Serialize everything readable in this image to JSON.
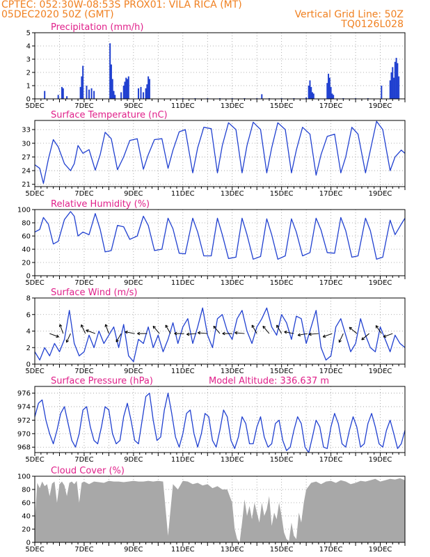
{
  "header": {
    "line1": "CPTEC:   052:30W-08:53S   PROX01: VILA RICA (MT)",
    "line2_left": "05DEC2020 50Z (GMT)",
    "line2_right": "Vertical Grid Line: 50Z",
    "line3_right": "TQ0126L028"
  },
  "colors": {
    "header": "#f08020",
    "title": "#e0208a",
    "series": "#2040d0",
    "cloud": "#a8a8a8",
    "arrow": "#000000"
  },
  "x_tick_labels": [
    "5DEC",
    "7DEC",
    "9DEC",
    "11DEC",
    "13DEC",
    "15DEC",
    "17DEC",
    "19DEC"
  ],
  "chart_data": [
    {
      "id": "precip",
      "type": "bar",
      "title": "Precipitation (mm/h)",
      "xlim": [
        5.0,
        20.0
      ],
      "ylim": [
        0,
        5
      ],
      "yticks": [
        0,
        1,
        2,
        3,
        4,
        5
      ],
      "grid": "dotted",
      "x": [
        5.4,
        5.95,
        6.1,
        6.15,
        6.3,
        6.85,
        6.9,
        6.95,
        7.1,
        7.2,
        7.3,
        7.4,
        8.05,
        8.1,
        8.15,
        8.2,
        8.25,
        8.5,
        8.6,
        8.65,
        8.7,
        8.75,
        8.8,
        9.2,
        9.3,
        9.4,
        9.5,
        9.55,
        9.6,
        9.65,
        11.0,
        11.5,
        12.0,
        12.5,
        13.0,
        13.5,
        14.0,
        14.2,
        14.5,
        15.0,
        15.5,
        16.0,
        16.1,
        16.15,
        16.2,
        16.25,
        16.3,
        16.85,
        16.9,
        16.95,
        17.0,
        17.05,
        17.1,
        17.5,
        18.0,
        18.5,
        19.05,
        19.4,
        19.45,
        19.5,
        19.55,
        19.6,
        19.65,
        19.7,
        19.75
      ],
      "values": [
        0.6,
        0.3,
        0.9,
        0.8,
        0.2,
        0.9,
        1.7,
        2.5,
        1.0,
        0.7,
        0.8,
        0.6,
        4.2,
        2.6,
        1.5,
        0.6,
        0.3,
        0.5,
        1.0,
        1.3,
        1.6,
        1.5,
        1.7,
        0.8,
        0.9,
        0.5,
        0.8,
        1.1,
        1.7,
        1.5,
        0.05,
        0.05,
        0.05,
        0.05,
        0.05,
        0.05,
        0.05,
        0.35,
        0.05,
        0.05,
        0.05,
        0.1,
        1.0,
        1.4,
        0.9,
        0.5,
        0.4,
        1.2,
        1.9,
        1.6,
        0.9,
        0.4,
        0.3,
        0.05,
        0.05,
        0.05,
        1.0,
        1.4,
        2.0,
        2.4,
        1.6,
        2.8,
        3.1,
        2.7,
        1.7
      ]
    },
    {
      "id": "temp",
      "type": "line",
      "title": "Surface Temperature (nC)",
      "xlim": [
        5.0,
        20.0
      ],
      "ylim": [
        20.5,
        35.0
      ],
      "yticks": [
        21,
        24,
        27,
        30,
        33
      ],
      "grid": "dotted",
      "x": [
        5.0,
        5.2,
        5.35,
        5.55,
        5.75,
        5.95,
        6.2,
        6.45,
        6.6,
        6.75,
        6.95,
        7.2,
        7.45,
        7.65,
        7.85,
        8.1,
        8.35,
        8.6,
        8.85,
        9.15,
        9.4,
        9.6,
        9.85,
        10.15,
        10.4,
        10.6,
        10.85,
        11.1,
        11.4,
        11.6,
        11.85,
        12.15,
        12.4,
        12.6,
        12.85,
        13.15,
        13.4,
        13.6,
        13.85,
        14.15,
        14.4,
        14.6,
        14.85,
        15.15,
        15.4,
        15.6,
        15.85,
        16.15,
        16.4,
        16.6,
        16.85,
        17.15,
        17.4,
        17.6,
        17.85,
        18.1,
        18.4,
        18.6,
        18.85,
        19.1,
        19.4,
        19.6,
        19.85,
        20.0
      ],
      "values": [
        25.3,
        24.5,
        21.2,
        26.5,
        30.8,
        29.2,
        25.5,
        24.0,
        25.5,
        29.5,
        27.8,
        28.6,
        24.1,
        27.5,
        32.4,
        31.0,
        24.2,
        27.0,
        30.6,
        31.0,
        24.3,
        27.5,
        30.8,
        31.0,
        24.5,
        28.5,
        32.5,
        33.0,
        23.5,
        29.0,
        33.5,
        33.2,
        23.5,
        29.5,
        34.5,
        33.0,
        23.5,
        29.5,
        34.6,
        33.0,
        23.5,
        29.0,
        34.5,
        33.0,
        23.5,
        28.5,
        33.5,
        32.0,
        23.0,
        27.5,
        31.5,
        32.0,
        23.5,
        27.0,
        33.5,
        32.0,
        23.5,
        28.5,
        34.8,
        33.0,
        24.0,
        27.0,
        28.5,
        27.8
      ]
    },
    {
      "id": "rh",
      "type": "line",
      "title": "Relative Humidity (%)",
      "xlim": [
        5.0,
        20.0
      ],
      "ylim": [
        0,
        100
      ],
      "yticks": [
        0,
        20,
        40,
        60,
        80,
        100
      ],
      "grid": "dotted",
      "x": [
        5.0,
        5.2,
        5.35,
        5.55,
        5.75,
        5.95,
        6.2,
        6.45,
        6.6,
        6.75,
        6.95,
        7.2,
        7.45,
        7.65,
        7.85,
        8.1,
        8.35,
        8.6,
        8.85,
        9.15,
        9.4,
        9.6,
        9.85,
        10.15,
        10.4,
        10.6,
        10.85,
        11.1,
        11.4,
        11.6,
        11.85,
        12.15,
        12.4,
        12.6,
        12.85,
        13.15,
        13.4,
        13.6,
        13.85,
        14.15,
        14.4,
        14.6,
        14.85,
        15.15,
        15.4,
        15.6,
        15.85,
        16.15,
        16.4,
        16.6,
        16.85,
        17.15,
        17.4,
        17.6,
        17.85,
        18.1,
        18.4,
        18.6,
        18.85,
        19.1,
        19.4,
        19.6,
        19.85,
        20.0
      ],
      "values": [
        66,
        70,
        88,
        78,
        48,
        52,
        85,
        97,
        90,
        60,
        66,
        62,
        94,
        70,
        36,
        38,
        76,
        74,
        55,
        60,
        90,
        76,
        38,
        40,
        87,
        71,
        34,
        33,
        87,
        66,
        30,
        30,
        87,
        62,
        26,
        28,
        87,
        62,
        25,
        29,
        86,
        62,
        25,
        30,
        86,
        66,
        30,
        35,
        87,
        69,
        35,
        34,
        88,
        68,
        28,
        30,
        87,
        68,
        25,
        28,
        84,
        62,
        78,
        87
      ]
    },
    {
      "id": "wind",
      "type": "line",
      "title": "Surface Wind (m/s)",
      "xlim": [
        5.0,
        20.0
      ],
      "ylim": [
        0,
        8
      ],
      "yticks": [
        0,
        2,
        4,
        6,
        8
      ],
      "grid": "dotted",
      "x": [
        5.0,
        5.2,
        5.4,
        5.6,
        5.8,
        6.0,
        6.2,
        6.4,
        6.6,
        6.8,
        7.0,
        7.2,
        7.4,
        7.6,
        7.8,
        8.0,
        8.2,
        8.4,
        8.6,
        8.8,
        9.0,
        9.2,
        9.4,
        9.6,
        9.8,
        10.0,
        10.2,
        10.4,
        10.6,
        10.8,
        11.0,
        11.2,
        11.4,
        11.6,
        11.8,
        12.0,
        12.2,
        12.4,
        12.6,
        12.8,
        13.0,
        13.2,
        13.4,
        13.6,
        13.8,
        14.0,
        14.2,
        14.4,
        14.6,
        14.8,
        15.0,
        15.2,
        15.4,
        15.6,
        15.8,
        16.0,
        16.2,
        16.4,
        16.6,
        16.8,
        17.0,
        17.2,
        17.4,
        17.6,
        17.8,
        18.0,
        18.2,
        18.4,
        18.6,
        18.8,
        19.0,
        19.2,
        19.4,
        19.6,
        19.8,
        20.0
      ],
      "values": [
        1.5,
        0.5,
        2.0,
        1.0,
        2.5,
        1.5,
        3.0,
        6.5,
        2.5,
        1.0,
        1.5,
        3.5,
        2.0,
        4.0,
        2.5,
        3.5,
        4.5,
        2.0,
        4.8,
        1.0,
        0.3,
        3.0,
        2.5,
        4.5,
        2.0,
        3.5,
        1.5,
        3.0,
        5.0,
        2.5,
        4.5,
        5.5,
        2.5,
        4.5,
        6.8,
        3.5,
        2.0,
        5.5,
        6.0,
        4.0,
        3.0,
        5.5,
        6.5,
        4.0,
        2.5,
        4.5,
        5.5,
        6.8,
        4.5,
        3.5,
        6.0,
        5.0,
        3.0,
        5.8,
        5.5,
        2.5,
        4.5,
        6.5,
        2.0,
        0.5,
        1.0,
        4.5,
        5.5,
        3.5,
        1.5,
        2.5,
        5.5,
        3.5,
        2.0,
        1.5,
        4.5,
        3.0,
        1.5,
        3.5,
        2.5,
        2.0
      ]
    },
    {
      "id": "pressure",
      "type": "line",
      "title": "Surface Pressure (hPa)",
      "extra_label": "Model Altitude: 336.637 m",
      "xlim": [
        5.0,
        20.0
      ],
      "ylim": [
        967.2,
        977.0
      ],
      "yticks": [
        968,
        970,
        972,
        974,
        976
      ],
      "grid": "dotted",
      "x": [
        5.0,
        5.15,
        5.3,
        5.45,
        5.6,
        5.75,
        5.9,
        6.05,
        6.2,
        6.35,
        6.5,
        6.65,
        6.8,
        6.95,
        7.1,
        7.25,
        7.4,
        7.55,
        7.7,
        7.85,
        8.0,
        8.15,
        8.3,
        8.45,
        8.6,
        8.75,
        8.9,
        9.05,
        9.2,
        9.35,
        9.5,
        9.65,
        9.8,
        9.95,
        10.1,
        10.25,
        10.4,
        10.55,
        10.7,
        10.85,
        11.0,
        11.15,
        11.3,
        11.45,
        11.6,
        11.75,
        11.9,
        12.05,
        12.2,
        12.35,
        12.5,
        12.65,
        12.8,
        12.95,
        13.1,
        13.25,
        13.4,
        13.55,
        13.7,
        13.85,
        14.0,
        14.15,
        14.3,
        14.45,
        14.6,
        14.75,
        14.9,
        15.05,
        15.2,
        15.35,
        15.5,
        15.65,
        15.8,
        15.95,
        16.1,
        16.25,
        16.4,
        16.55,
        16.7,
        16.85,
        17.0,
        17.15,
        17.3,
        17.45,
        17.6,
        17.75,
        17.9,
        18.05,
        18.2,
        18.35,
        18.5,
        18.65,
        18.8,
        18.95,
        19.1,
        19.25,
        19.4,
        19.55,
        19.7,
        19.85,
        20.0
      ],
      "values": [
        972.5,
        974.5,
        975.0,
        972.0,
        970.0,
        968.5,
        970.5,
        973.0,
        974.0,
        971.5,
        969.0,
        968.0,
        970.0,
        973.5,
        974.0,
        971.0,
        969.0,
        968.5,
        971.0,
        974.0,
        973.5,
        970.0,
        968.5,
        969.0,
        972.5,
        974.5,
        972.0,
        969.0,
        968.5,
        972.0,
        975.5,
        976.0,
        972.0,
        969.0,
        969.5,
        973.5,
        976.0,
        973.0,
        969.5,
        968.0,
        970.0,
        973.0,
        973.5,
        970.0,
        968.0,
        970.0,
        973.0,
        972.5,
        969.0,
        968.0,
        970.5,
        973.5,
        972.5,
        969.0,
        967.8,
        969.5,
        972.5,
        971.5,
        968.5,
        968.5,
        971.0,
        972.5,
        969.5,
        968.0,
        968.5,
        971.5,
        972.0,
        969.0,
        967.5,
        968.0,
        970.5,
        972.5,
        971.5,
        968.0,
        967.2,
        969.5,
        972.0,
        971.0,
        968.0,
        967.8,
        971.0,
        973.0,
        971.5,
        968.5,
        968.0,
        970.5,
        972.5,
        971.0,
        968.0,
        968.5,
        971.5,
        973.0,
        971.0,
        968.5,
        968.0,
        970.5,
        972.0,
        970.0,
        967.8,
        968.5,
        970.5
      ]
    },
    {
      "id": "cloud",
      "type": "area",
      "title": "Cloud Cover (%)",
      "xlim": [
        5.0,
        20.0
      ],
      "ylim": [
        0,
        100
      ],
      "yticks": [
        0,
        20,
        40,
        60,
        80,
        100
      ],
      "grid": "dotted",
      "x": [
        5.0,
        5.1,
        5.2,
        5.3,
        5.4,
        5.5,
        5.6,
        5.7,
        5.8,
        5.9,
        6.0,
        6.1,
        6.2,
        6.3,
        6.4,
        6.5,
        6.6,
        6.7,
        6.8,
        6.9,
        7.0,
        7.2,
        7.4,
        7.6,
        7.8,
        8.0,
        8.2,
        8.4,
        8.6,
        8.8,
        9.0,
        9.2,
        9.4,
        9.6,
        9.8,
        10.0,
        10.2,
        10.4,
        10.6,
        10.8,
        11.0,
        11.2,
        11.4,
        11.6,
        11.8,
        12.0,
        12.2,
        12.4,
        12.6,
        12.8,
        13.0,
        13.1,
        13.2,
        13.3,
        13.4,
        13.5,
        13.6,
        13.7,
        13.8,
        13.9,
        14.0,
        14.1,
        14.2,
        14.3,
        14.4,
        14.5,
        14.6,
        14.7,
        14.8,
        14.9,
        15.0,
        15.1,
        15.2,
        15.3,
        15.4,
        15.5,
        15.6,
        15.7,
        15.8,
        15.9,
        16.0,
        16.1,
        16.2,
        16.4,
        16.6,
        16.8,
        17.0,
        17.2,
        17.4,
        17.6,
        17.8,
        18.0,
        18.2,
        18.4,
        18.6,
        18.8,
        19.0,
        19.2,
        19.4,
        19.6,
        19.8,
        20.0
      ],
      "values": [
        30,
        90,
        82,
        92,
        85,
        88,
        70,
        89,
        92,
        60,
        88,
        92,
        86,
        70,
        90,
        92,
        88,
        93,
        60,
        90,
        92,
        88,
        92,
        91,
        90,
        93,
        92,
        92,
        91,
        92,
        93,
        92,
        92,
        93,
        92,
        93,
        92,
        10,
        88,
        80,
        93,
        92,
        88,
        90,
        86,
        88,
        82,
        85,
        80,
        80,
        60,
        20,
        5,
        0,
        30,
        65,
        40,
        55,
        35,
        60,
        45,
        30,
        60,
        40,
        50,
        70,
        25,
        45,
        35,
        60,
        40,
        15,
        5,
        2,
        30,
        10,
        5,
        45,
        30,
        60,
        80,
        85,
        90,
        92,
        88,
        92,
        93,
        90,
        94,
        92,
        88,
        90,
        93,
        92,
        94,
        96,
        92,
        94,
        96,
        95,
        97,
        94
      ]
    }
  ]
}
